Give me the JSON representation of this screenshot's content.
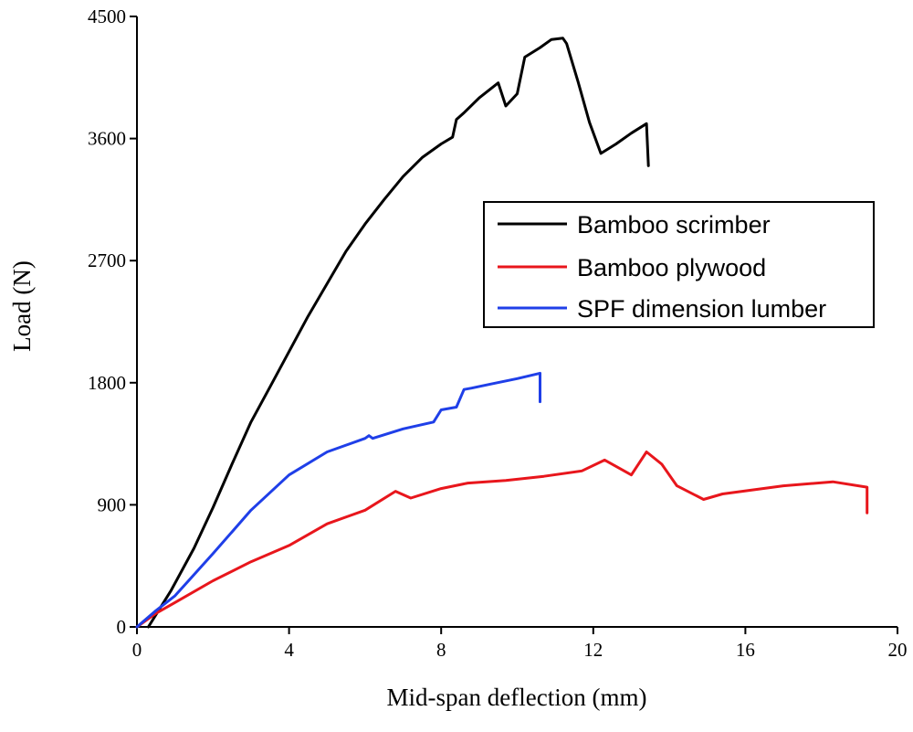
{
  "chart_data": {
    "type": "line",
    "title": "",
    "xlabel": "Mid-span deflection (mm)",
    "ylabel": "Load (N)",
    "xlim": [
      0,
      20
    ],
    "ylim": [
      0,
      4500
    ],
    "x_ticks": [
      0,
      4,
      8,
      12,
      16,
      20
    ],
    "y_ticks": [
      0,
      900,
      1800,
      2700,
      3600,
      4500
    ],
    "x_tick_labels": [
      "0",
      "4",
      "8",
      "12",
      "16",
      "20"
    ],
    "y_tick_labels": [
      "0",
      "900",
      "1800",
      "2700",
      "3600",
      "4500"
    ],
    "grid": false,
    "legend_position": "right",
    "series": [
      {
        "name": "Bamboo scrimber",
        "color": "#000000",
        "points": [
          [
            0.3,
            0
          ],
          [
            0.9,
            270
          ],
          [
            1.5,
            580
          ],
          [
            2.0,
            880
          ],
          [
            2.5,
            1200
          ],
          [
            3.0,
            1510
          ],
          [
            3.5,
            1770
          ],
          [
            4.0,
            2030
          ],
          [
            4.5,
            2290
          ],
          [
            5.0,
            2530
          ],
          [
            5.5,
            2770
          ],
          [
            6.0,
            2970
          ],
          [
            6.5,
            3150
          ],
          [
            7.0,
            3320
          ],
          [
            7.5,
            3460
          ],
          [
            8.0,
            3560
          ],
          [
            8.3,
            3610
          ],
          [
            8.4,
            3740
          ],
          [
            8.6,
            3790
          ],
          [
            9.0,
            3900
          ],
          [
            9.5,
            4010
          ],
          [
            9.7,
            3840
          ],
          [
            10.0,
            3930
          ],
          [
            10.2,
            4200
          ],
          [
            10.6,
            4270
          ],
          [
            10.9,
            4330
          ],
          [
            11.2,
            4340
          ],
          [
            11.3,
            4300
          ],
          [
            11.6,
            4020
          ],
          [
            11.9,
            3720
          ],
          [
            12.2,
            3490
          ],
          [
            12.6,
            3560
          ],
          [
            13.0,
            3640
          ],
          [
            13.4,
            3710
          ],
          [
            13.45,
            3400
          ]
        ]
      },
      {
        "name": "Bamboo plywood",
        "color": "#e8161c",
        "points": [
          [
            0,
            0
          ],
          [
            0.5,
            100
          ],
          [
            1,
            180
          ],
          [
            2,
            340
          ],
          [
            3,
            480
          ],
          [
            4,
            600
          ],
          [
            5,
            760
          ],
          [
            6,
            860
          ],
          [
            6.8,
            1000
          ],
          [
            7.2,
            950
          ],
          [
            8,
            1020
          ],
          [
            8.7,
            1060
          ],
          [
            9.7,
            1080
          ],
          [
            10.7,
            1110
          ],
          [
            11.7,
            1150
          ],
          [
            12.3,
            1230
          ],
          [
            13,
            1120
          ],
          [
            13.4,
            1290
          ],
          [
            13.8,
            1200
          ],
          [
            14.2,
            1040
          ],
          [
            14.9,
            940
          ],
          [
            15.4,
            980
          ],
          [
            17,
            1040
          ],
          [
            18.3,
            1070
          ],
          [
            19.2,
            1030
          ],
          [
            19.2,
            840
          ]
        ]
      },
      {
        "name": "SPF dimension lumber",
        "color": "#1f3fe8",
        "points": [
          [
            0,
            0
          ],
          [
            0.5,
            120
          ],
          [
            1,
            230
          ],
          [
            2,
            540
          ],
          [
            3,
            860
          ],
          [
            4,
            1120
          ],
          [
            5,
            1290
          ],
          [
            6,
            1390
          ],
          [
            6.1,
            1410
          ],
          [
            6.2,
            1390
          ],
          [
            7,
            1460
          ],
          [
            7.8,
            1510
          ],
          [
            8.0,
            1600
          ],
          [
            8.4,
            1620
          ],
          [
            8.6,
            1750
          ],
          [
            8.8,
            1760
          ],
          [
            9.3,
            1790
          ],
          [
            10.0,
            1830
          ],
          [
            10.6,
            1870
          ],
          [
            10.6,
            1660
          ]
        ]
      }
    ]
  }
}
